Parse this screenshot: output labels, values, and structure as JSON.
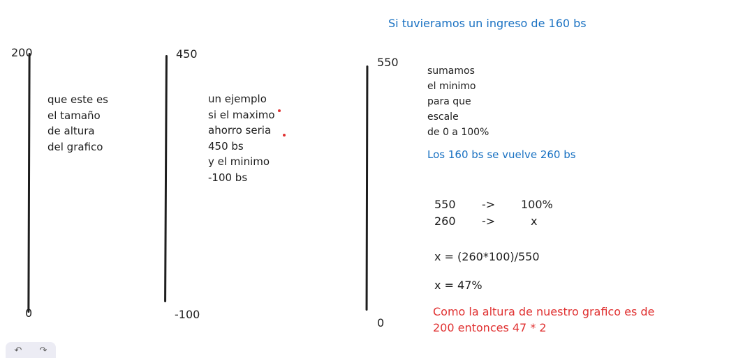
{
  "heading": "Si tuvieramos un ingreso de 160 bs",
  "gauge1": {
    "top": "200",
    "bottom": "0",
    "note": "que este es\nel tamaño\nde altura\ndel grafico"
  },
  "gauge2": {
    "top": "450",
    "bottom": "-100",
    "note": "un ejemplo\nsi el maximo\nahorro seria\n450 bs\ny el minimo\n-100 bs"
  },
  "gauge3": {
    "top": "550",
    "bottom": "0",
    "note": "sumamos\nel minimo\npara que\nescale\nde 0 a 100%",
    "result": "Los 160 bs se vuelve 260 bs"
  },
  "calc": {
    "row1": {
      "a": "550",
      "arrow": "->",
      "b": "100%"
    },
    "row2": {
      "a": "260",
      "arrow": "->",
      "b": "x"
    },
    "formula": "x = (260*100)/550",
    "answer": "x = 47%"
  },
  "conclusion": "Como la altura de nuestro grafico es de\n200 entonces 47 * 2",
  "toolbar": {
    "undo_icon": "↶",
    "redo_icon": "↷"
  },
  "colors": {
    "ink": "#1e1e1e",
    "blue": "#1971c2",
    "red": "#e03131"
  }
}
